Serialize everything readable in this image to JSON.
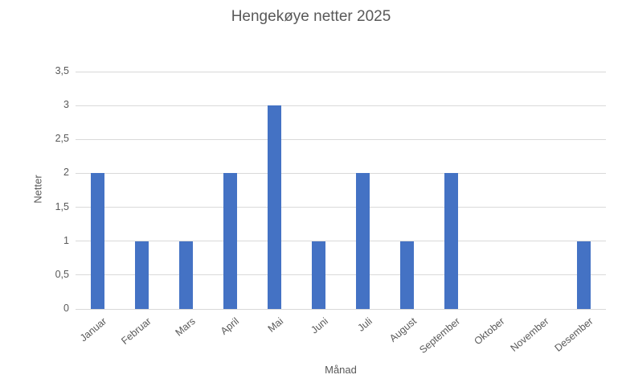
{
  "chart_data": {
    "type": "bar",
    "title": "Hengekøye netter 2025",
    "xlabel": "Månad",
    "ylabel": "Netter",
    "categories": [
      "Januar",
      "Februar",
      "Mars",
      "April",
      "Mai",
      "Juni",
      "Juli",
      "August",
      "September",
      "Oktober",
      "November",
      "Desember"
    ],
    "values": [
      2,
      1,
      1,
      2,
      3,
      1,
      2,
      1,
      2,
      0,
      0,
      1
    ],
    "ylim": [
      0,
      3.5
    ],
    "ytick_step": 0.5,
    "ytick_labels": [
      "0",
      "0,5",
      "1",
      "1,5",
      "2",
      "2,5",
      "3",
      "3,5"
    ],
    "grid": true,
    "legend_position": "none",
    "bar_color": "#4472C4",
    "gridline_color": "#D9D9D9",
    "text_color": "#595959"
  }
}
